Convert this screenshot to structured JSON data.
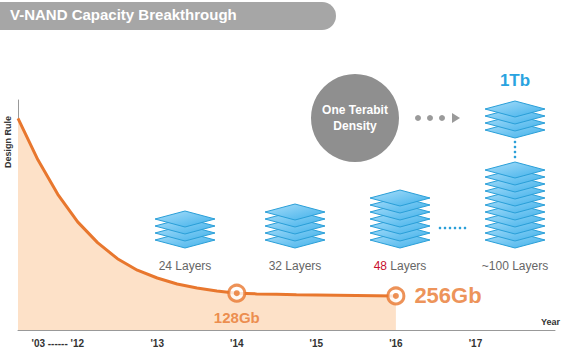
{
  "chart_data": {
    "type": "line",
    "title": "V-NAND Capacity Breakthrough",
    "x_label": "Year",
    "y_label": "Design Rule",
    "categories": [
      null,
      null,
      "'03 ------ '12",
      null,
      null,
      null,
      null,
      "'13",
      null,
      null,
      null,
      "'14",
      null,
      null,
      null,
      "'15",
      null,
      null,
      null,
      "'16",
      null,
      null,
      null,
      "'17",
      null,
      null,
      null,
      null
    ],
    "values": [
      92,
      74,
      59,
      47,
      38,
      31,
      26,
      22.6,
      20,
      18.3,
      17,
      16,
      15.7,
      15.5,
      15.3,
      15.2,
      15.1,
      15,
      14.9,
      14.8,
      null,
      null,
      null,
      null,
      null,
      null,
      null,
      null
    ],
    "color": "#e8772e",
    "ylim": [
      0,
      100
    ],
    "tick_labels": "x",
    "grid": false,
    "point_labels": [
      {
        "x": "'14",
        "text": "128Gb"
      },
      {
        "x": "'16",
        "text": "256Gb"
      }
    ],
    "illustrations": [
      {
        "label": "24 Layers"
      },
      {
        "label": "32 Layers"
      },
      {
        "label": "48 Layers",
        "highlight": "48"
      },
      {
        "label": "~100 Layers",
        "top_label": "1Tb"
      }
    ],
    "callout": "One Terabit Density"
  }
}
